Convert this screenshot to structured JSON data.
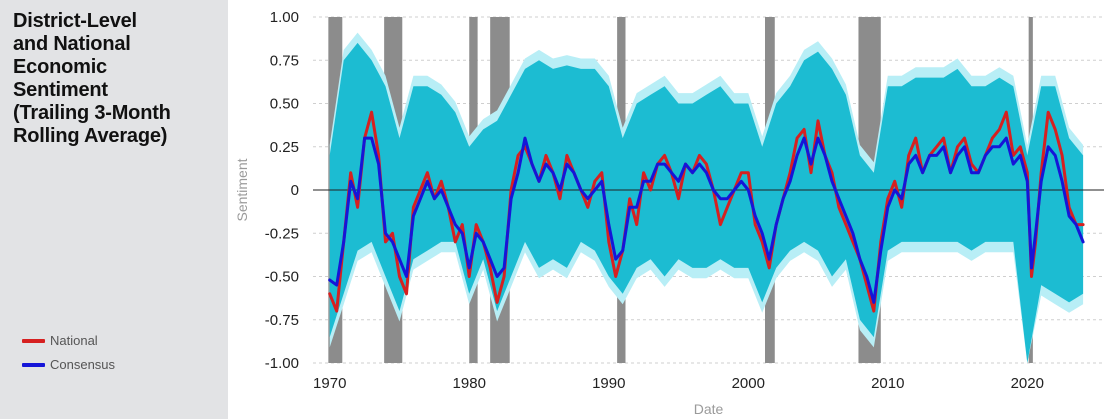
{
  "title": "District-Level\nand National\nEconomic\nSentiment\n(Trailing 3-Month\nRolling Average)",
  "legend": [
    {
      "label": "National",
      "color": "#d62020"
    },
    {
      "label": "Consensus",
      "color": "#1515d8"
    }
  ],
  "colors": {
    "band": "#1cbcd2",
    "band_light": "#b8eef6",
    "recession": "#8c8c8c",
    "grid": "#cfcfcf",
    "zero_line": "#222222"
  },
  "chart_data": {
    "type": "line",
    "xlabel": "Date",
    "ylabel": "Sentiment",
    "xlim": [
      1968.8,
      2025.5
    ],
    "ylim": [
      -1.0,
      1.0
    ],
    "x_ticks": [
      1970,
      1980,
      1990,
      2000,
      2010,
      2020
    ],
    "y_ticks": [
      1.0,
      0.75,
      0.5,
      0.25,
      0,
      -0.25,
      -0.5,
      -0.75,
      -1.0
    ],
    "y_tick_labels": [
      "1.00",
      "0.75",
      "0.50",
      "0.25",
      "0",
      "-0.25",
      "-0.50",
      "-0.75",
      "-1.00"
    ],
    "grid": "horizontal dashed",
    "legend_position": "left panel",
    "recessions": [
      [
        1969.9,
        1970.9
      ],
      [
        1973.9,
        1975.2
      ],
      [
        1980.0,
        1980.6
      ],
      [
        1981.5,
        1982.9
      ],
      [
        1990.6,
        1991.2
      ],
      [
        2001.2,
        2001.9
      ],
      [
        2007.9,
        2009.5
      ],
      [
        2020.1,
        2020.4
      ]
    ],
    "band_x": [
      1970.0,
      1971.0,
      1972.0,
      1973.0,
      1974.0,
      1975.0,
      1976.0,
      1977.0,
      1978.0,
      1979.0,
      1980.0,
      1981.0,
      1982.0,
      1983.0,
      1984.0,
      1985.0,
      1986.0,
      1987.0,
      1988.0,
      1989.0,
      1990.0,
      1991.0,
      1992.0,
      1993.0,
      1994.0,
      1995.0,
      1996.0,
      1997.0,
      1998.0,
      1999.0,
      2000.0,
      2001.0,
      2002.0,
      2003.0,
      2004.0,
      2005.0,
      2006.0,
      2007.0,
      2008.0,
      2009.0,
      2010.0,
      2011.0,
      2012.0,
      2013.0,
      2014.0,
      2015.0,
      2016.0,
      2017.0,
      2018.0,
      2019.0,
      2020.0,
      2021.0,
      2022.0,
      2023.0,
      2024.0
    ],
    "band_upper": [
      0.2,
      0.75,
      0.85,
      0.75,
      0.6,
      0.3,
      0.6,
      0.6,
      0.55,
      0.45,
      0.25,
      0.35,
      0.4,
      0.55,
      0.7,
      0.75,
      0.7,
      0.72,
      0.7,
      0.7,
      0.6,
      0.3,
      0.5,
      0.55,
      0.6,
      0.5,
      0.5,
      0.55,
      0.6,
      0.5,
      0.5,
      0.25,
      0.5,
      0.6,
      0.75,
      0.8,
      0.7,
      0.55,
      0.2,
      0.1,
      0.6,
      0.6,
      0.65,
      0.65,
      0.65,
      0.7,
      0.6,
      0.6,
      0.65,
      0.6,
      0.2,
      0.6,
      0.6,
      0.3,
      0.2
    ],
    "band_lower": [
      -0.85,
      -0.6,
      -0.35,
      -0.3,
      -0.5,
      -0.7,
      -0.4,
      -0.35,
      -0.3,
      -0.3,
      -0.6,
      -0.4,
      -0.7,
      -0.5,
      -0.3,
      -0.45,
      -0.4,
      -0.45,
      -0.3,
      -0.35,
      -0.5,
      -0.6,
      -0.45,
      -0.4,
      -0.5,
      -0.4,
      -0.45,
      -0.45,
      -0.4,
      -0.45,
      -0.45,
      -0.65,
      -0.45,
      -0.35,
      -0.3,
      -0.35,
      -0.5,
      -0.4,
      -0.75,
      -0.85,
      -0.35,
      -0.3,
      -0.3,
      -0.3,
      -0.3,
      -0.3,
      -0.35,
      -0.3,
      -0.3,
      -0.3,
      -1.0,
      -0.55,
      -0.6,
      -0.65,
      -0.6
    ],
    "series": [
      {
        "name": "National",
        "x": [
          1970.0,
          1970.5,
          1971.0,
          1971.5,
          1972.0,
          1972.5,
          1973.0,
          1973.5,
          1974.0,
          1974.5,
          1975.0,
          1975.5,
          1976.0,
          1976.5,
          1977.0,
          1977.5,
          1978.0,
          1978.5,
          1979.0,
          1979.5,
          1980.0,
          1980.5,
          1981.0,
          1981.5,
          1982.0,
          1982.5,
          1983.0,
          1983.5,
          1984.0,
          1984.5,
          1985.0,
          1985.5,
          1986.0,
          1986.5,
          1987.0,
          1987.5,
          1988.0,
          1988.5,
          1989.0,
          1989.5,
          1990.0,
          1990.5,
          1991.0,
          1991.5,
          1992.0,
          1992.5,
          1993.0,
          1993.5,
          1994.0,
          1994.5,
          1995.0,
          1995.5,
          1996.0,
          1996.5,
          1997.0,
          1997.5,
          1998.0,
          1998.5,
          1999.0,
          1999.5,
          2000.0,
          2000.5,
          2001.0,
          2001.5,
          2002.0,
          2002.5,
          2003.0,
          2003.5,
          2004.0,
          2004.5,
          2005.0,
          2005.5,
          2006.0,
          2006.5,
          2007.0,
          2007.5,
          2008.0,
          2008.5,
          2009.0,
          2009.5,
          2010.0,
          2010.5,
          2011.0,
          2011.5,
          2012.0,
          2012.5,
          2013.0,
          2013.5,
          2014.0,
          2014.5,
          2015.0,
          2015.5,
          2016.0,
          2016.5,
          2017.0,
          2017.5,
          2018.0,
          2018.5,
          2019.0,
          2019.5,
          2020.0,
          2020.3,
          2020.6,
          2021.0,
          2021.5,
          2022.0,
          2022.5,
          2023.0,
          2023.5,
          2024.0
        ],
        "values": [
          -0.6,
          -0.7,
          -0.3,
          0.1,
          -0.1,
          0.3,
          0.45,
          0.2,
          -0.3,
          -0.25,
          -0.5,
          -0.6,
          -0.1,
          0.0,
          0.1,
          -0.05,
          0.05,
          -0.1,
          -0.3,
          -0.2,
          -0.5,
          -0.2,
          -0.3,
          -0.45,
          -0.65,
          -0.5,
          0.0,
          0.2,
          0.25,
          0.15,
          0.05,
          0.2,
          0.1,
          -0.05,
          0.2,
          0.1,
          0.0,
          -0.1,
          0.05,
          0.1,
          -0.3,
          -0.5,
          -0.35,
          -0.05,
          -0.2,
          0.1,
          0.0,
          0.15,
          0.2,
          0.1,
          -0.05,
          0.15,
          0.1,
          0.2,
          0.15,
          0.0,
          -0.2,
          -0.1,
          0.0,
          0.1,
          0.1,
          -0.2,
          -0.3,
          -0.45,
          -0.2,
          -0.05,
          0.1,
          0.3,
          0.35,
          0.1,
          0.4,
          0.2,
          0.1,
          -0.1,
          -0.2,
          -0.3,
          -0.4,
          -0.55,
          -0.7,
          -0.3,
          -0.05,
          0.05,
          -0.1,
          0.2,
          0.3,
          0.1,
          0.2,
          0.25,
          0.3,
          0.1,
          0.25,
          0.3,
          0.15,
          0.1,
          0.2,
          0.3,
          0.35,
          0.45,
          0.2,
          0.25,
          0.1,
          -0.5,
          -0.3,
          0.1,
          0.45,
          0.35,
          0.2,
          -0.1,
          -0.2,
          -0.2
        ]
      },
      {
        "name": "Consensus",
        "x": [
          1970.0,
          1970.5,
          1971.0,
          1971.5,
          1972.0,
          1972.5,
          1973.0,
          1973.5,
          1974.0,
          1974.5,
          1975.0,
          1975.5,
          1976.0,
          1976.5,
          1977.0,
          1977.5,
          1978.0,
          1978.5,
          1979.0,
          1979.5,
          1980.0,
          1980.5,
          1981.0,
          1981.5,
          1982.0,
          1982.5,
          1983.0,
          1983.5,
          1984.0,
          1984.5,
          1985.0,
          1985.5,
          1986.0,
          1986.5,
          1987.0,
          1987.5,
          1988.0,
          1988.5,
          1989.0,
          1989.5,
          1990.0,
          1990.5,
          1991.0,
          1991.5,
          1992.0,
          1992.5,
          1993.0,
          1993.5,
          1994.0,
          1994.5,
          1995.0,
          1995.5,
          1996.0,
          1996.5,
          1997.0,
          1997.5,
          1998.0,
          1998.5,
          1999.0,
          1999.5,
          2000.0,
          2000.5,
          2001.0,
          2001.5,
          2002.0,
          2002.5,
          2003.0,
          2003.5,
          2004.0,
          2004.5,
          2005.0,
          2005.5,
          2006.0,
          2006.5,
          2007.0,
          2007.5,
          2008.0,
          2008.5,
          2009.0,
          2009.5,
          2010.0,
          2010.5,
          2011.0,
          2011.5,
          2012.0,
          2012.5,
          2013.0,
          2013.5,
          2014.0,
          2014.5,
          2015.0,
          2015.5,
          2016.0,
          2016.5,
          2017.0,
          2017.5,
          2018.0,
          2018.5,
          2019.0,
          2019.5,
          2020.0,
          2020.3,
          2020.6,
          2021.0,
          2021.5,
          2022.0,
          2022.5,
          2023.0,
          2023.5,
          2024.0
        ],
        "values": [
          -0.52,
          -0.55,
          -0.3,
          0.05,
          -0.05,
          0.3,
          0.3,
          0.15,
          -0.25,
          -0.3,
          -0.4,
          -0.5,
          -0.15,
          -0.05,
          0.05,
          -0.05,
          0.0,
          -0.1,
          -0.2,
          -0.25,
          -0.45,
          -0.25,
          -0.3,
          -0.4,
          -0.5,
          -0.45,
          -0.05,
          0.1,
          0.3,
          0.15,
          0.05,
          0.15,
          0.1,
          0.0,
          0.15,
          0.1,
          0.0,
          -0.05,
          0.0,
          0.05,
          -0.2,
          -0.4,
          -0.35,
          -0.1,
          -0.1,
          0.05,
          0.05,
          0.15,
          0.15,
          0.1,
          0.05,
          0.15,
          0.1,
          0.15,
          0.1,
          0.0,
          -0.05,
          -0.05,
          0.0,
          0.05,
          0.0,
          -0.15,
          -0.25,
          -0.4,
          -0.2,
          -0.05,
          0.05,
          0.2,
          0.3,
          0.15,
          0.3,
          0.2,
          0.05,
          -0.05,
          -0.15,
          -0.25,
          -0.4,
          -0.5,
          -0.65,
          -0.35,
          -0.1,
          0.0,
          -0.05,
          0.15,
          0.2,
          0.1,
          0.2,
          0.2,
          0.25,
          0.1,
          0.2,
          0.25,
          0.1,
          0.1,
          0.2,
          0.25,
          0.25,
          0.3,
          0.15,
          0.2,
          0.05,
          -0.45,
          -0.25,
          0.05,
          0.25,
          0.2,
          0.05,
          -0.15,
          -0.2,
          -0.3
        ]
      }
    ]
  }
}
